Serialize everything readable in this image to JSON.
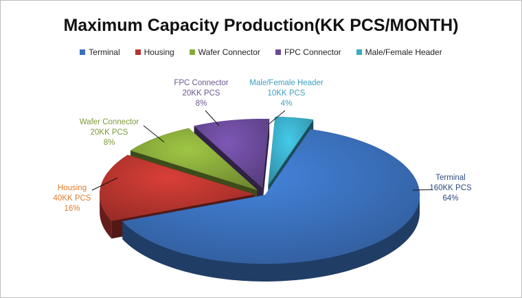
{
  "chart_data": {
    "type": "pie",
    "title": "Maximum Capacity Production(KK PCS/MONTH)",
    "legend_position": "top",
    "three_d": true,
    "slices": [
      {
        "name": "Terminal",
        "value_label": "160KK PCS",
        "percent_label": "64%",
        "value": 160,
        "color": "#3A6FBA",
        "label_color": "#2E4A7D",
        "explode": 0
      },
      {
        "name": "Housing",
        "value_label": "40KK PCS",
        "percent_label": "16%",
        "value": 40,
        "color": "#B8352F",
        "label_color": "#E07B2A",
        "explode": 0
      },
      {
        "name": "Wafer Connector",
        "value_label": "20KK PCS",
        "percent_label": "8%",
        "value": 20,
        "color": "#87A83A",
        "label_color": "#7C9A39",
        "explode": 0
      },
      {
        "name": "FPC Connector",
        "value_label": "20KK PCS",
        "percent_label": "8%",
        "value": 20,
        "color": "#6A4A9A",
        "label_color": "#6B5592",
        "explode": 0
      },
      {
        "name": "Male/Female Header",
        "value_label": "10KK PCS",
        "percent_label": "4%",
        "value": 10,
        "color": "#3AABC6",
        "label_color": "#3A9FBF",
        "explode": 0
      }
    ]
  }
}
